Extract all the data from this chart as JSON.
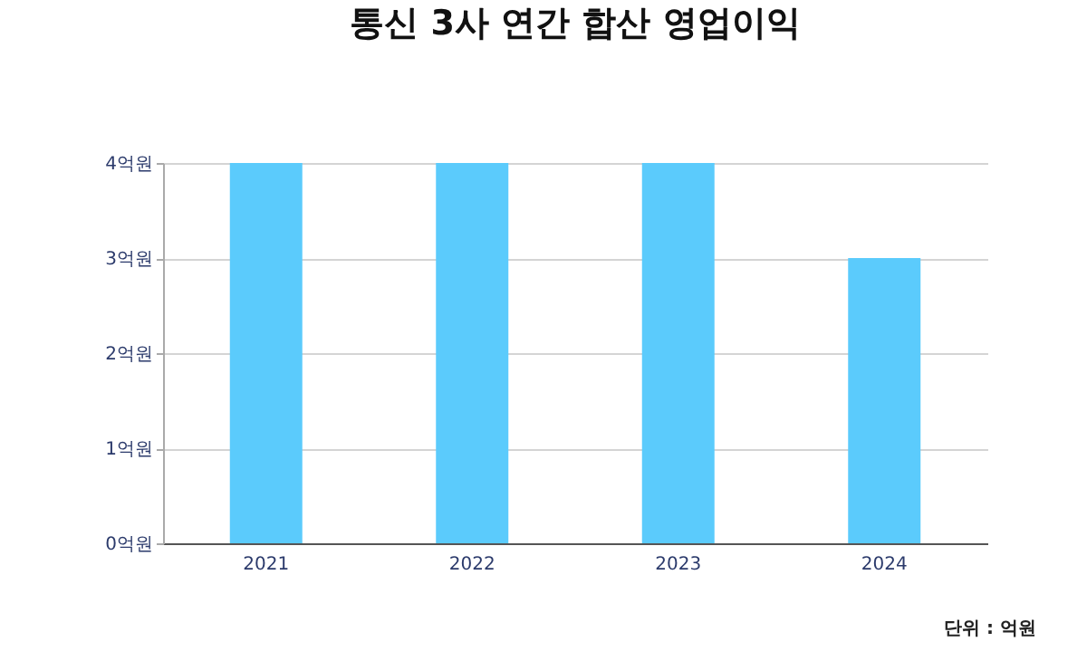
{
  "chart_data": {
    "type": "bar",
    "title": "통신 3사 연간 합산 영업이익",
    "categories": [
      "2021",
      "2022",
      "2023",
      "2024"
    ],
    "values": [
      4,
      4,
      4,
      3
    ],
    "color": "#5bcbfc",
    "ylim": [
      0,
      4
    ],
    "yticks": [
      {
        "value": 0,
        "label": "0억원"
      },
      {
        "value": 1,
        "label": "1억원"
      },
      {
        "value": 2,
        "label": "2억원"
      },
      {
        "value": 3,
        "label": "3억원"
      },
      {
        "value": 4,
        "label": "4억원"
      }
    ],
    "grid": "y",
    "annotations": [
      "단위 : 억원"
    ]
  }
}
